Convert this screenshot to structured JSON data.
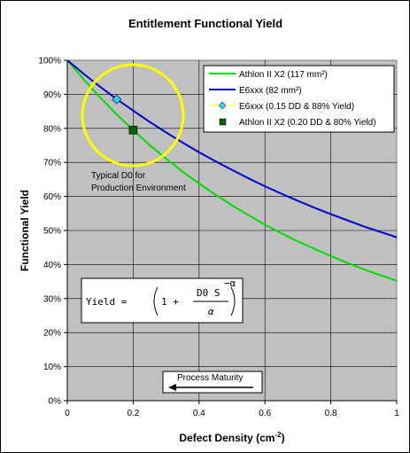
{
  "chart_data": {
    "type": "line",
    "title": "Entitlement Functional Yield",
    "xlabel": "Defect Density (cm",
    "xlabel_sup": "-2",
    "xlabel_close": ")",
    "ylabel": "Functional Yield",
    "xlim": [
      0,
      1
    ],
    "ylim": [
      0,
      1
    ],
    "x_ticks": [
      0,
      0.2,
      0.4,
      0.6,
      0.8,
      1
    ],
    "x_tick_labels": [
      "0",
      "0.2",
      "0.4",
      "0.6",
      "0.8",
      "1"
    ],
    "y_ticks": [
      0,
      0.1,
      0.2,
      0.3,
      0.4,
      0.5,
      0.6,
      0.7,
      0.8,
      0.9,
      1.0
    ],
    "y_tick_labels": [
      "0%",
      "10%",
      "20%",
      "30%",
      "40%",
      "50%",
      "60%",
      "70%",
      "80%",
      "90%",
      "100%"
    ],
    "grid": true,
    "plot_background": "#c0c0c0",
    "legend_position": "top-right",
    "series": [
      {
        "name": "Athlon II X2 (117 mm²)",
        "color": "#00dd00",
        "kind": "line",
        "x": [
          0,
          0.05,
          0.1,
          0.15,
          0.2,
          0.25,
          0.3,
          0.35,
          0.4,
          0.45,
          0.5,
          0.55,
          0.6,
          0.65,
          0.7,
          0.75,
          0.8,
          0.85,
          0.9,
          0.95,
          1.0
        ],
        "y": [
          1.0,
          0.944,
          0.891,
          0.841,
          0.795,
          0.751,
          0.711,
          0.673,
          0.638,
          0.605,
          0.574,
          0.545,
          0.517,
          0.492,
          0.468,
          0.446,
          0.425,
          0.405,
          0.386,
          0.369,
          0.352
        ]
      },
      {
        "name": "E6xxx (82 mm²)",
        "color": "#0000cc",
        "kind": "line",
        "x": [
          0,
          0.05,
          0.1,
          0.15,
          0.2,
          0.25,
          0.3,
          0.35,
          0.4,
          0.45,
          0.5,
          0.55,
          0.6,
          0.65,
          0.7,
          0.75,
          0.8,
          0.85,
          0.9,
          0.95,
          1.0
        ],
        "y": [
          1.0,
          0.96,
          0.922,
          0.886,
          0.852,
          0.819,
          0.788,
          0.758,
          0.73,
          0.703,
          0.678,
          0.653,
          0.63,
          0.608,
          0.587,
          0.567,
          0.548,
          0.53,
          0.512,
          0.496,
          0.48
        ]
      },
      {
        "name": "E6xxx (0.15 DD & 88% Yield)",
        "color": "#33ccff",
        "kind": "point",
        "marker": "diamond",
        "x": [
          0.15
        ],
        "y": [
          0.885
        ]
      },
      {
        "name": "Athlon II X2 (0.20 DD & 80% Yield)",
        "color": "#006600",
        "kind": "point",
        "marker": "square",
        "x": [
          0.2
        ],
        "y": [
          0.795
        ]
      }
    ],
    "annotations": {
      "circle_note_line1": "Typical D0 for",
      "circle_note_line2": "Production Environment",
      "circle_color": "#ffff00",
      "arrow_label": "Process Maturity",
      "formula_lhs": "Yield = ",
      "formula_open": "1 + ",
      "formula_num": "D0 S",
      "formula_den": "α",
      "formula_exp": "−α"
    }
  }
}
